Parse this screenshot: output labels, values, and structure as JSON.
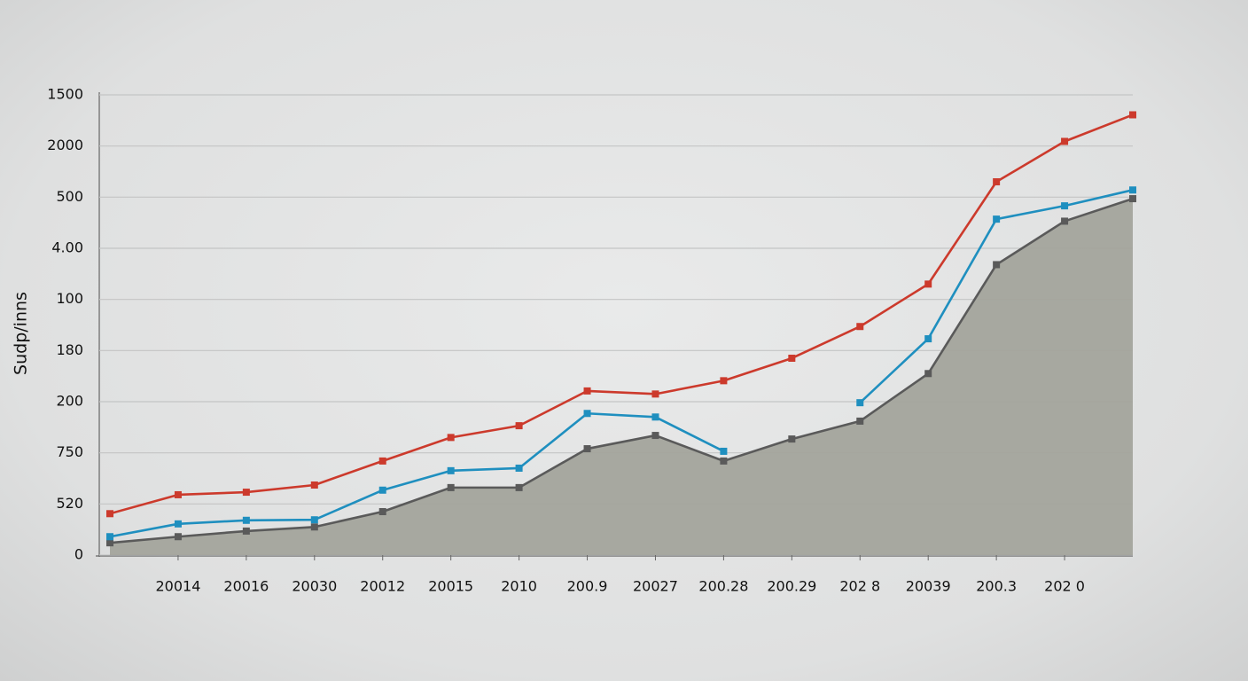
{
  "chart_data": {
    "type": "line",
    "y_label": "Sudp/inns",
    "categories": [
      null,
      "20014",
      "20016",
      "20030",
      "20012",
      "20015",
      "2010",
      "200.9",
      "20027",
      "200.28",
      "200.29",
      "202 8",
      "20039",
      "200.3",
      "202 0",
      null
    ],
    "series": [
      {
        "color": "#5a5a5a",
        "area": true,
        "area_color": "#a3a49c",
        "values": [
          0.24,
          0.36,
          0.47,
          0.55,
          0.85,
          1.32,
          1.32,
          2.08,
          2.34,
          1.84,
          2.27,
          2.62,
          3.55,
          5.68,
          6.53,
          6.97
        ]
      },
      {
        "color": "#1f8fbf",
        "values": [
          0.36,
          0.61,
          0.68,
          0.69,
          1.27,
          1.65,
          1.7,
          2.77,
          2.7,
          2.03,
          null,
          2.98,
          4.23,
          6.57,
          6.83,
          7.14
        ]
      },
      {
        "color": "#cc3a2c",
        "values": [
          0.81,
          1.18,
          1.23,
          1.37,
          1.84,
          2.3,
          2.53,
          3.21,
          3.15,
          3.41,
          3.85,
          4.47,
          5.3,
          7.3,
          8.09,
          8.61
        ]
      }
    ],
    "ylim": [
      0,
      9
    ],
    "yticks": [
      {
        "value": 0,
        "label": "0"
      },
      {
        "value": 1,
        "label": "520"
      },
      {
        "value": 2,
        "label": "750"
      },
      {
        "value": 3,
        "label": "200"
      },
      {
        "value": 4,
        "label": "180"
      },
      {
        "value": 5,
        "label": "100"
      },
      {
        "value": 6,
        "label": "4.00"
      },
      {
        "value": 7,
        "label": "500"
      },
      {
        "value": 8,
        "label": "2000"
      },
      {
        "value": 9,
        "label": "1500"
      }
    ],
    "grid": true
  }
}
